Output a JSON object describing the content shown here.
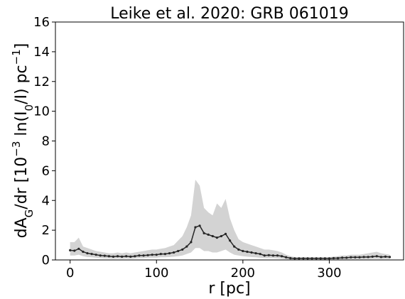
{
  "chart_data": {
    "type": "line",
    "title": "Leike et al. 2020: GRB 061019",
    "xlabel": "r [pc]",
    "ylabel": [
      {
        "text": "dA"
      },
      {
        "text": "G",
        "script": "sub"
      },
      {
        "text": "/dr [10"
      },
      {
        "text": "−3",
        "script": "sup"
      },
      {
        "text": " ln("
      },
      {
        "text": "I"
      },
      {
        "text": "0",
        "script": "sub"
      },
      {
        "text": "/"
      },
      {
        "text": "I"
      },
      {
        "text": ") pc"
      },
      {
        "text": "−1",
        "script": "sup"
      },
      {
        "text": "]"
      }
    ],
    "x": [
      0,
      5,
      10,
      15,
      20,
      25,
      30,
      35,
      40,
      45,
      50,
      55,
      60,
      65,
      70,
      75,
      80,
      85,
      90,
      95,
      100,
      105,
      110,
      115,
      120,
      125,
      130,
      135,
      140,
      145,
      150,
      155,
      160,
      165,
      170,
      175,
      180,
      185,
      190,
      195,
      200,
      205,
      210,
      215,
      220,
      225,
      230,
      235,
      240,
      245,
      250,
      255,
      260,
      265,
      270,
      275,
      280,
      285,
      290,
      295,
      300,
      305,
      310,
      315,
      320,
      325,
      330,
      335,
      340,
      345,
      350,
      355,
      360,
      365,
      370
    ],
    "values": [
      0.65,
      0.62,
      0.75,
      0.55,
      0.45,
      0.4,
      0.35,
      0.3,
      0.28,
      0.25,
      0.22,
      0.25,
      0.22,
      0.25,
      0.22,
      0.25,
      0.3,
      0.3,
      0.32,
      0.35,
      0.35,
      0.4,
      0.4,
      0.45,
      0.5,
      0.6,
      0.7,
      0.9,
      1.2,
      2.2,
      2.3,
      1.8,
      1.7,
      1.6,
      1.5,
      1.6,
      1.75,
      1.3,
      0.9,
      0.7,
      0.6,
      0.55,
      0.5,
      0.45,
      0.4,
      0.3,
      0.32,
      0.3,
      0.3,
      0.25,
      0.18,
      0.12,
      0.1,
      0.1,
      0.1,
      0.1,
      0.1,
      0.1,
      0.1,
      0.1,
      0.1,
      0.12,
      0.12,
      0.15,
      0.15,
      0.18,
      0.18,
      0.18,
      0.2,
      0.2,
      0.22,
      0.25,
      0.2,
      0.22,
      0.2
    ],
    "upper": [
      1.2,
      1.2,
      1.5,
      0.9,
      0.8,
      0.7,
      0.6,
      0.55,
      0.5,
      0.45,
      0.45,
      0.5,
      0.45,
      0.5,
      0.45,
      0.5,
      0.55,
      0.6,
      0.65,
      0.7,
      0.7,
      0.75,
      0.8,
      0.9,
      1.0,
      1.3,
      1.6,
      2.2,
      3.0,
      5.4,
      5.0,
      3.5,
      3.2,
      3.0,
      3.8,
      3.5,
      4.1,
      2.8,
      2.0,
      1.4,
      1.2,
      1.1,
      1.0,
      0.9,
      0.8,
      0.7,
      0.7,
      0.65,
      0.6,
      0.5,
      0.35,
      0.25,
      0.2,
      0.2,
      0.2,
      0.2,
      0.2,
      0.2,
      0.2,
      0.2,
      0.2,
      0.22,
      0.25,
      0.3,
      0.3,
      0.35,
      0.35,
      0.35,
      0.4,
      0.45,
      0.5,
      0.55,
      0.45,
      0.4,
      0.35
    ],
    "lower": [
      0.3,
      0.3,
      0.35,
      0.25,
      0.2,
      0.18,
      0.15,
      0.12,
      0.1,
      0.1,
      0.08,
      0.1,
      0.08,
      0.1,
      0.08,
      0.1,
      0.12,
      0.12,
      0.15,
      0.15,
      0.15,
      0.18,
      0.18,
      0.2,
      0.22,
      0.25,
      0.3,
      0.4,
      0.5,
      0.8,
      0.8,
      0.6,
      0.6,
      0.5,
      0.5,
      0.6,
      0.7,
      0.5,
      0.35,
      0.3,
      0.25,
      0.22,
      0.2,
      0.18,
      0.15,
      0.12,
      0.12,
      0.12,
      0.1,
      0.08,
      0.05,
      0.03,
      0.02,
      0.02,
      0.02,
      0.02,
      0.02,
      0.02,
      0.02,
      0.02,
      0.02,
      0.03,
      0.03,
      0.04,
      0.04,
      0.05,
      0.05,
      0.05,
      0.06,
      0.06,
      0.07,
      0.08,
      0.06,
      0.07,
      0.06
    ],
    "color": "#262626",
    "band_color": "#d3d3d3",
    "xlim": [
      -17,
      386
    ],
    "ylim": [
      0,
      16
    ],
    "xticks": [
      0,
      100,
      200,
      300
    ],
    "yticks": [
      0,
      2,
      4,
      6,
      8,
      10,
      12,
      14,
      16
    ],
    "grid": false
  }
}
